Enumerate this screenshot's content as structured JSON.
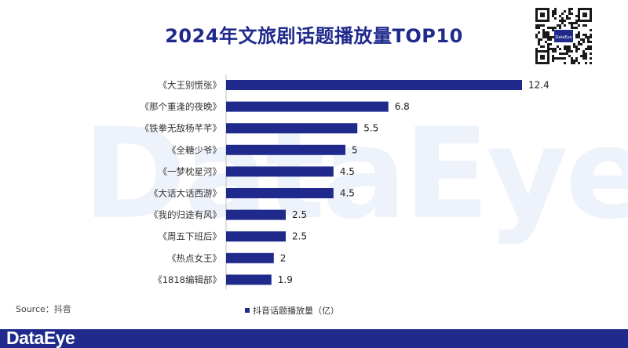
{
  "header": {
    "title": "2024年文旅剧话题播放量TOP10"
  },
  "qr": {
    "center_text": "DataEye"
  },
  "watermark": {
    "text": "DataEye"
  },
  "chart_data": {
    "type": "bar",
    "orientation": "horizontal",
    "title": "2024年文旅剧话题播放量TOP10",
    "xlabel": "",
    "ylabel": "",
    "xlim": [
      0,
      12.4
    ],
    "grid": false,
    "legend_position": "bottom",
    "bar_color": "#1f2a8c",
    "categories": [
      "《大王别慌张》",
      "《那个重逢的夜晚》",
      "《铁拳无敌杨芊芊》",
      "《全糖少爷》",
      "《一梦枕星河》",
      "《大话大话西游》",
      "《我的归途有风》",
      "《周五下班后》",
      "《热点女王》",
      "《1818编辑部》"
    ],
    "series": [
      {
        "name": "抖音话题播放量（亿）",
        "values": [
          12.4,
          6.8,
          5.5,
          5,
          4.5,
          4.5,
          2.5,
          2.5,
          2,
          1.9
        ],
        "value_labels": [
          "12.4",
          "6.8",
          "5.5",
          "5",
          "4.5",
          "4.5",
          "2.5",
          "2.5",
          "2",
          "1.9"
        ]
      }
    ]
  },
  "source": {
    "text": "Source：抖音"
  },
  "footer": {
    "logo_text": "DataEye",
    "bar_color": "#1f2a8c"
  }
}
